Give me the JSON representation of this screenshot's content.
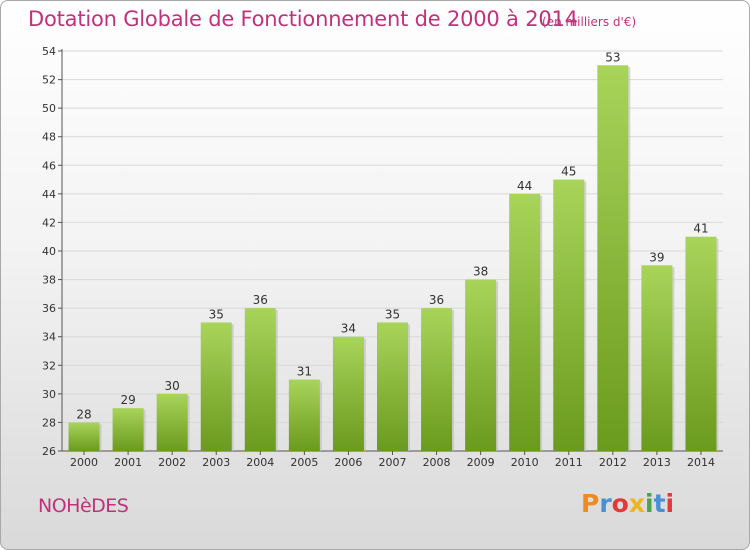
{
  "header": {
    "title": "Dotation Globale de Fonctionnement de 2000 à 2014",
    "unit": "(en milliers d'€)"
  },
  "footer": {
    "commune": "NOHèDES",
    "logo": "Proxiti"
  },
  "colors": {
    "title": "#c0327a",
    "bar_light": "#a8d45a",
    "bar_dark": "#6a9a1e",
    "grid": "#d8d8d8",
    "logo_letters": [
      "#f08a1e",
      "#4a8fd6",
      "#e23a3a",
      "#f0b41e",
      "#4aa34a",
      "#4a8fd6",
      "#e23a3a"
    ]
  },
  "chart_data": {
    "type": "bar",
    "title": "Dotation Globale de Fonctionnement de 2000 à 2014",
    "subtitle": "(en milliers d'€)",
    "categories": [
      "2000",
      "2001",
      "2002",
      "2003",
      "2004",
      "2005",
      "2006",
      "2007",
      "2008",
      "2009",
      "2010",
      "2011",
      "2012",
      "2013",
      "2014"
    ],
    "values": [
      28,
      29,
      30,
      35,
      36,
      31,
      34,
      35,
      36,
      38,
      44,
      45,
      53,
      39,
      41
    ],
    "xlabel": "",
    "ylabel": "",
    "ylim": [
      26,
      54
    ],
    "yticks": [
      26,
      28,
      30,
      32,
      34,
      36,
      38,
      40,
      42,
      44,
      46,
      48,
      50,
      52,
      54
    ],
    "grid": true
  }
}
